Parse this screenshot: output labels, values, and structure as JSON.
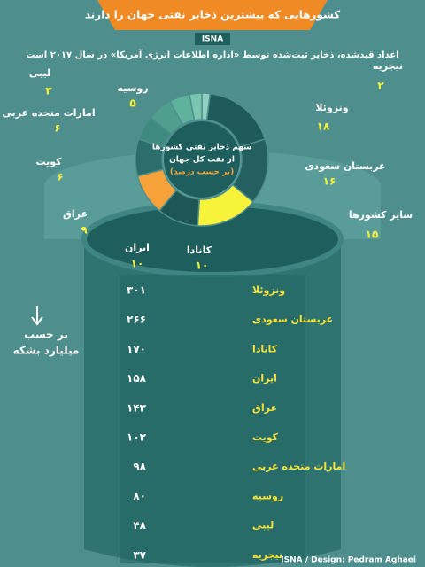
{
  "header": {
    "title": "کشورهایی که بیشترین ذخایر نفتی جهان را دارند",
    "brand": "ISNA",
    "subtitle": "اعداد قیدشده، ذخایر ثبت‌شده توسط «اداره اطلاعات انرژی آمریکا» در سال ۲۰۱۷ است"
  },
  "chart_data": {
    "type": "pie",
    "donut": true,
    "center_text": [
      "سهم ذخایر نفتی کشورها",
      "از نفت کل جهان",
      "(بر حسب درصد)"
    ],
    "categories": [
      "نیجریه",
      "ونزوئلا",
      "عربستان سعودی",
      "سایر کشورها",
      "کانادا",
      "ایران",
      "عراق",
      "کویت",
      "امارات متحده عربی",
      "روسیه",
      "لیبی"
    ],
    "values": [
      2,
      18,
      16,
      15,
      10,
      10,
      9,
      6,
      6,
      5,
      3
    ],
    "value_labels": [
      "۲",
      "۱۸",
      "۱۶",
      "۱۵",
      "۱۰",
      "۱۰",
      "۹",
      "۶",
      "۶",
      "۵",
      "۳"
    ],
    "colors": [
      "#8fd0c2",
      "#1f5a5a",
      "#24605f",
      "#f7f23a",
      "#1e5656",
      "#f7a23a",
      "#2c6e6c",
      "#3e8a80",
      "#4f9e8e",
      "#5fb29c",
      "#7ac6ae"
    ]
  },
  "table": {
    "unit": [
      "بر حسب",
      "میلیارد بشکه"
    ],
    "rows": [
      [
        "ونزوئلا",
        "۳۰۱"
      ],
      [
        "عربستان سعودی",
        "۲۶۶"
      ],
      [
        "کانادا",
        "۱۷۰"
      ],
      [
        "ایران",
        "۱۵۸"
      ],
      [
        "عراق",
        "۱۴۳"
      ],
      [
        "کویت",
        "۱۰۲"
      ],
      [
        "امارات متحده عربی",
        "۹۸"
      ],
      [
        "روسیه",
        "۸۰"
      ],
      [
        "لیبی",
        "۴۸"
      ],
      [
        "نیجریه",
        "۳۷"
      ]
    ]
  },
  "footer": {
    "credit": "ISNA / Design: Pedram Aghaei"
  }
}
